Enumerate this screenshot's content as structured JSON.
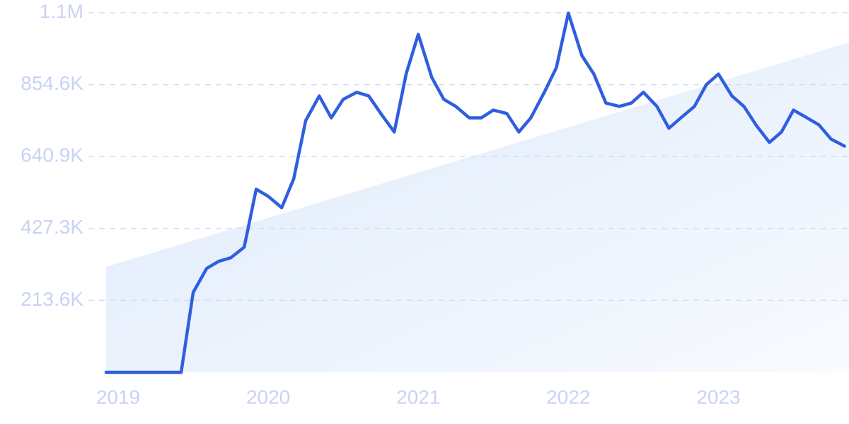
{
  "chart_data": {
    "type": "line",
    "x": [
      2018.92,
      2019.0,
      2019.09,
      2019.17,
      2019.25,
      2019.34,
      2019.42,
      2019.5,
      2019.59,
      2019.67,
      2019.75,
      2019.84,
      2019.92,
      2020.0,
      2020.09,
      2020.17,
      2020.25,
      2020.34,
      2020.42,
      2020.5,
      2020.59,
      2020.67,
      2020.75,
      2020.84,
      2020.92,
      2021.0,
      2021.09,
      2021.17,
      2021.25,
      2021.34,
      2021.42,
      2021.5,
      2021.59,
      2021.67,
      2021.75,
      2021.84,
      2021.92,
      2022.0,
      2022.09,
      2022.17,
      2022.25,
      2022.34,
      2022.42,
      2022.5,
      2022.59,
      2022.67,
      2022.75,
      2022.84,
      2022.92,
      2023.0,
      2023.09,
      2023.17,
      2023.25,
      2023.34,
      2023.42,
      2023.5,
      2023.59,
      2023.67,
      2023.75,
      2023.84
    ],
    "series": [
      {
        "color": "#2f5fe0",
        "values": [
          0,
          0,
          0,
          0,
          0,
          0,
          0,
          237300,
          308700,
          329700,
          340200,
          371700,
          544000,
          523000,
          489000,
          575000,
          748000,
          821000,
          756000,
          811000,
          832000,
          821000,
          769000,
          714000,
          888000,
          1004000,
          876000,
          811000,
          790000,
          756000,
          756000,
          779000,
          769000,
          714000,
          756000,
          832000,
          905000,
          1067000,
          941000,
          886000,
          800000,
          790000,
          800000,
          832000,
          790000,
          725000,
          756000,
          790000,
          855000,
          886000,
          821000,
          790000,
          735000,
          683000,
          714000,
          779000,
          756000,
          735000,
          693000,
          672000
        ]
      }
    ],
    "xlim": [
      2018.92,
      2023.87
    ],
    "xticks": [
      2019,
      2020,
      2021,
      2022,
      2023
    ],
    "ylim": [
      0,
      1068200
    ],
    "yticks": [
      {
        "value": 213600,
        "label": "213.6K"
      },
      {
        "value": 427300,
        "label": "427.3K"
      },
      {
        "value": 640900,
        "label": "640.9K"
      },
      {
        "value": 854600,
        "label": "854.6K"
      },
      {
        "value": 1068200,
        "label": "1.1M"
      }
    ],
    "grid": true
  }
}
